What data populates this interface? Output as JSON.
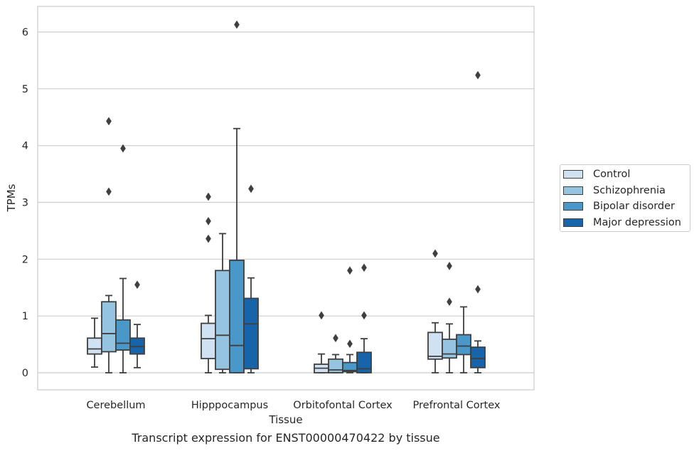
{
  "chart_data": {
    "type": "box",
    "title": "",
    "caption": "Transcript expression for ENST00000470422 by tissue",
    "xlabel": "Tissue",
    "ylabel": "TPMs",
    "ylim": [
      -0.3,
      6.45
    ],
    "yticks": [
      0,
      1,
      2,
      3,
      4,
      5,
      6
    ],
    "grid": "horizontal",
    "legend_position": "right",
    "categories": [
      "Cerebellum",
      "Hipppocampus",
      "Orbitofontal Cortex",
      "Prefrontal Cortex"
    ],
    "series": [
      {
        "name": "Control",
        "color": "#d0e1f2",
        "boxes": [
          {
            "whisker_low": 0.1,
            "q1": 0.33,
            "median": 0.42,
            "q3": 0.61,
            "whisker_high": 0.96,
            "outliers": []
          },
          {
            "whisker_low": 0.0,
            "q1": 0.25,
            "median": 0.6,
            "q3": 0.87,
            "whisker_high": 1.01,
            "outliers": [
              2.36,
              2.67,
              3.1
            ]
          },
          {
            "whisker_low": 0.0,
            "q1": 0.0,
            "median": 0.08,
            "q3": 0.15,
            "whisker_high": 0.33,
            "outliers": [
              1.01
            ]
          },
          {
            "whisker_low": 0.0,
            "q1": 0.24,
            "median": 0.29,
            "q3": 0.71,
            "whisker_high": 0.88,
            "outliers": [
              2.1
            ]
          }
        ]
      },
      {
        "name": "Schizophrenia",
        "color": "#94c4df",
        "boxes": [
          {
            "whisker_low": 0.0,
            "q1": 0.37,
            "median": 0.69,
            "q3": 1.25,
            "whisker_high": 1.36,
            "outliers": [
              3.19,
              4.43
            ]
          },
          {
            "whisker_low": 0.0,
            "q1": 0.06,
            "median": 0.66,
            "q3": 1.8,
            "whisker_high": 2.45,
            "outliers": []
          },
          {
            "whisker_low": 0.0,
            "q1": 0.0,
            "median": 0.05,
            "q3": 0.24,
            "whisker_high": 0.32,
            "outliers": [
              0.61
            ]
          },
          {
            "whisker_low": 0.0,
            "q1": 0.26,
            "median": 0.33,
            "q3": 0.59,
            "whisker_high": 0.86,
            "outliers": [
              1.25,
              1.88
            ]
          }
        ]
      },
      {
        "name": "Bipolar disorder",
        "color": "#4a98c9",
        "boxes": [
          {
            "whisker_low": 0.0,
            "q1": 0.4,
            "median": 0.52,
            "q3": 0.93,
            "whisker_high": 1.66,
            "outliers": [
              3.95
            ]
          },
          {
            "whisker_low": 0.0,
            "q1": 0.0,
            "median": 0.48,
            "q3": 1.98,
            "whisker_high": 4.3,
            "outliers": [
              6.13
            ]
          },
          {
            "whisker_low": 0.0,
            "q1": 0.02,
            "median": 0.04,
            "q3": 0.18,
            "whisker_high": 0.32,
            "outliers": [
              0.51,
              1.8
            ]
          },
          {
            "whisker_low": 0.0,
            "q1": 0.32,
            "median": 0.47,
            "q3": 0.67,
            "whisker_high": 1.16,
            "outliers": []
          }
        ]
      },
      {
        "name": "Major depression",
        "color": "#1764ab",
        "boxes": [
          {
            "whisker_low": 0.09,
            "q1": 0.33,
            "median": 0.46,
            "q3": 0.61,
            "whisker_high": 0.85,
            "outliers": [
              1.55
            ]
          },
          {
            "whisker_low": 0.0,
            "q1": 0.07,
            "median": 0.86,
            "q3": 1.31,
            "whisker_high": 1.67,
            "outliers": [
              3.24
            ]
          },
          {
            "whisker_low": 0.0,
            "q1": 0.0,
            "median": 0.07,
            "q3": 0.36,
            "whisker_high": 0.6,
            "outliers": [
              1.01,
              1.85
            ]
          },
          {
            "whisker_low": 0.0,
            "q1": 0.09,
            "median": 0.25,
            "q3": 0.45,
            "whisker_high": 0.56,
            "outliers": [
              1.47,
              5.24
            ]
          }
        ]
      }
    ]
  }
}
